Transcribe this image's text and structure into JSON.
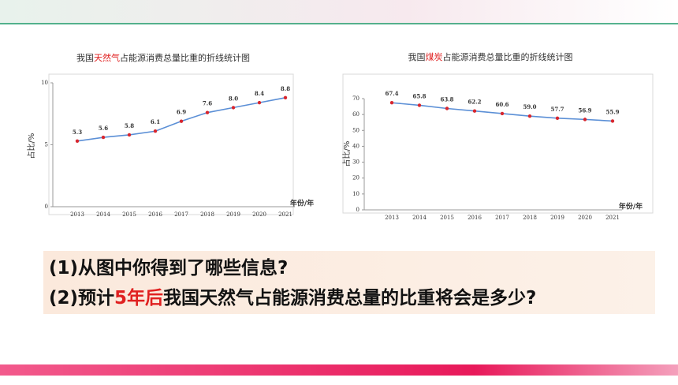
{
  "chart_data": [
    {
      "type": "line",
      "title": [
        "我国",
        "天然气",
        "占能源消费总量比重的折线统计图"
      ],
      "y_label": "占比/%",
      "x_label": "年份/年",
      "categories": [
        "2013",
        "2014",
        "2015",
        "2016",
        "2017",
        "2018",
        "2019",
        "2020",
        "2021"
      ],
      "values": [
        5.3,
        5.6,
        5.8,
        6.1,
        6.9,
        7.6,
        8.0,
        8.4,
        8.8
      ],
      "value_labels": [
        "5.3",
        "5.6",
        "5.8",
        "6.1",
        "6.9",
        "7.6",
        "8.0",
        "8.4",
        "8.8"
      ],
      "ylim": [
        0,
        10
      ],
      "yticks": [
        0,
        5,
        10
      ],
      "color": "#5b8fd6",
      "marker_color": "#d7262e"
    },
    {
      "type": "line",
      "title": [
        "我国",
        "煤炭",
        "占能源消费总量比重的折线统计图"
      ],
      "y_label": "占比/%",
      "x_label": "年份/年",
      "categories": [
        "2013",
        "2014",
        "2015",
        "2016",
        "2017",
        "2018",
        "2019",
        "2020",
        "2021"
      ],
      "values": [
        67.4,
        65.8,
        63.8,
        62.2,
        60.6,
        59.0,
        57.7,
        56.9,
        55.9
      ],
      "value_labels": [
        "67.4",
        "65.8",
        "63.8",
        "62.2",
        "60.6",
        "59.0",
        "57.7",
        "56.9",
        "55.9"
      ],
      "ylim": [
        0,
        70
      ],
      "yticks": [
        0,
        10,
        20,
        30,
        40,
        50,
        60,
        70
      ],
      "color": "#5b8fd6",
      "marker_color": "#d7262e"
    }
  ],
  "questions": [
    [
      "(1)从图中你得到了哪些信息?"
    ],
    [
      "(2)预计",
      "5年后",
      "我国天然气占能源消费总量的比重将会是多少?"
    ]
  ]
}
